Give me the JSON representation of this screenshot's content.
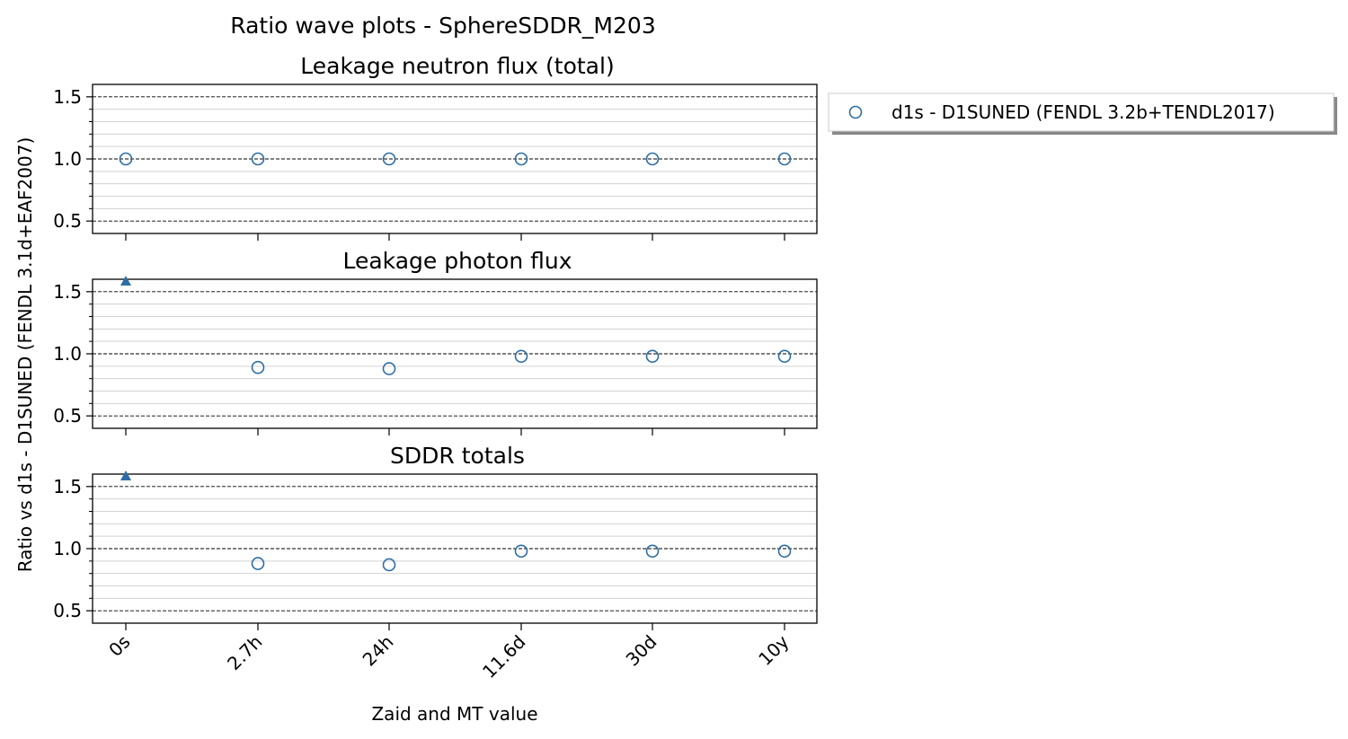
{
  "figure": {
    "suptitle": "Ratio wave plots - SphereSDDR_M203",
    "ylabel": "Ratio vs d1s - D1SUNED (FENDL 3.1d+EAF2007)",
    "xlabel": "Zaid and MT value",
    "legend_label": "d1s - D1SUNED (FENDL 3.2b+TENDL2017)"
  },
  "colors": {
    "series": "#2e6da4",
    "axis": "#000000",
    "minor_grid": "#d3d3d3"
  },
  "chart_data": {
    "type": "scatter",
    "categories": [
      "0s",
      "2.7h",
      "24h",
      "11.6d",
      "30d",
      "10y"
    ],
    "ylim": [
      0.4,
      1.6
    ],
    "yticks": [
      0.5,
      1.0,
      1.5
    ],
    "ytick_labels": [
      "0.5",
      "1.0",
      "1.5"
    ],
    "legend_position": "outside-upper-right",
    "grid": "major dashed, minor solid light gray",
    "series": [
      {
        "name": "d1s - D1SUNED (FENDL 3.2b+TENDL2017)",
        "marker": "open-circle"
      }
    ],
    "subplots": [
      {
        "title": "Leakage neutron flux (total)",
        "values": [
          1.0,
          1.0,
          1.0,
          1.0,
          1.0,
          1.0
        ],
        "out_of_range_above": []
      },
      {
        "title": "Leakage photon flux",
        "values": [
          null,
          0.89,
          0.88,
          0.98,
          0.98,
          0.98
        ],
        "out_of_range_above": [
          0
        ]
      },
      {
        "title": "SDDR totals",
        "values": [
          null,
          0.88,
          0.87,
          0.98,
          0.98,
          0.98
        ],
        "out_of_range_above": [
          0
        ]
      }
    ]
  }
}
